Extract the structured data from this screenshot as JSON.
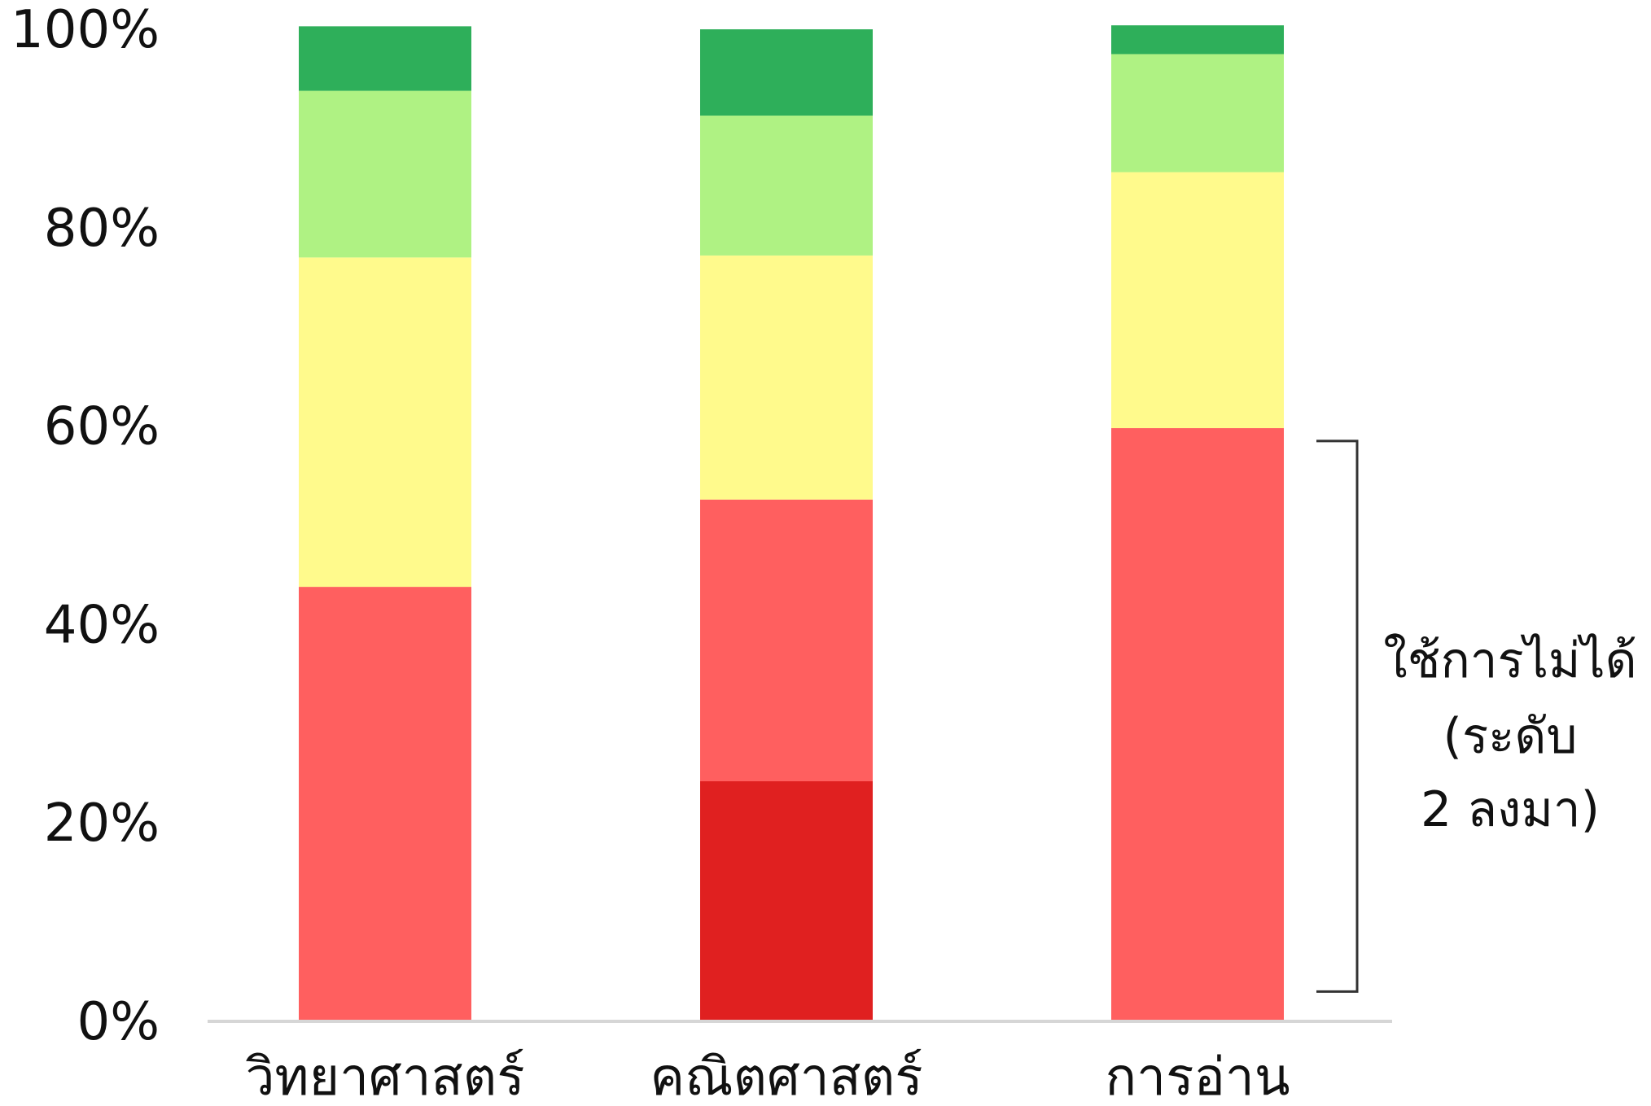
{
  "chart_data": {
    "type": "bar",
    "stacked": true,
    "categories": [
      "วิทยาศาสตร์",
      "คณิตศาสตร์",
      "การอ่าน"
    ],
    "series": [
      {
        "color": "#E02020",
        "values": [
          0,
          24.2,
          0
        ]
      },
      {
        "color": "#FF5F5F",
        "values": [
          43.8,
          28.4,
          59.8
        ]
      },
      {
        "color": "#FFFA8C",
        "values": [
          33.2,
          24.6,
          25.8
        ]
      },
      {
        "color": "#AFF283",
        "values": [
          16.8,
          14.1,
          11.9
        ]
      },
      {
        "color": "#2EAF5A",
        "values": [
          6.5,
          8.7,
          2.9
        ]
      }
    ],
    "yticks": [
      "0%",
      "20%",
      "40%",
      "60%",
      "80%",
      "100%"
    ],
    "ylim": [
      0,
      100
    ],
    "annotation": {
      "lines": [
        "ใช้การไม่ได้",
        "(ระดับ",
        "2 ลงมา)"
      ],
      "range": [
        3,
        58.5
      ]
    },
    "grid": false,
    "legend": "none"
  }
}
